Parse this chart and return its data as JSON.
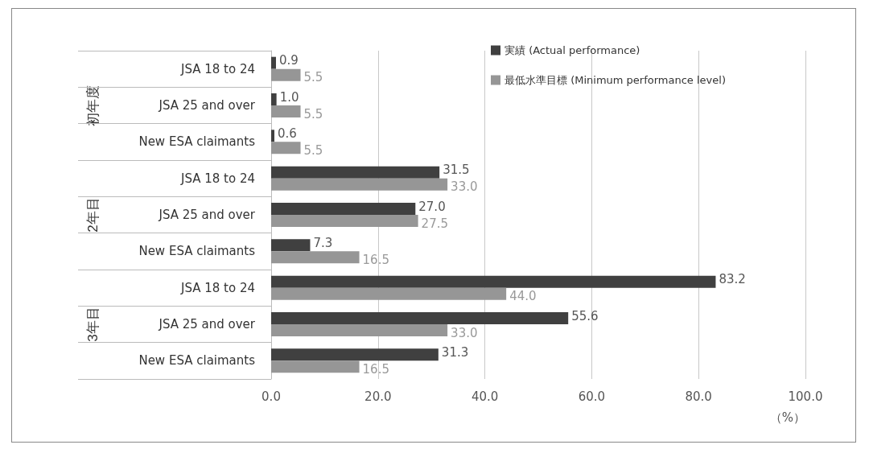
{
  "chart_data": {
    "type": "bar",
    "orientation": "horizontal",
    "xlabel": "（%）",
    "categories": [
      "JSA 18 to 24",
      "JSA 25 and over",
      "New ESA claimants",
      "JSA 18 to 24",
      "JSA 25 and over",
      "New ESA claimants",
      "JSA 18 to 24",
      "JSA 25 and over",
      "New ESA claimants"
    ],
    "annotations": [
      "初年度",
      "2年目",
      "3年目"
    ],
    "series": [
      {
        "name": "実績 (Actual performance)",
        "color": "#404040",
        "values": [
          0.9,
          1.0,
          0.6,
          31.5,
          27.0,
          7.3,
          83.2,
          55.6,
          31.3
        ],
        "value_labels": [
          "0.9",
          "1.0",
          "0.6",
          "31.5",
          "27.0",
          "7.3",
          "83.2",
          "55.6",
          "31.3"
        ]
      },
      {
        "name": "最低水準目標 (Minimum performance level)",
        "color": "#969696",
        "values": [
          5.5,
          5.5,
          5.5,
          33.0,
          27.5,
          16.5,
          44.0,
          33.0,
          16.5
        ],
        "value_labels": [
          "5.5",
          "5.5",
          "5.5",
          "33.0",
          "27.5",
          "16.5",
          "44.0",
          "33.0",
          "16.5"
        ]
      }
    ],
    "xlim": [
      0,
      100
    ],
    "xticks": [
      {
        "value": 0,
        "label": "0.0"
      },
      {
        "value": 20,
        "label": "20.0"
      },
      {
        "value": 40,
        "label": "40.0"
      },
      {
        "value": 60,
        "label": "60.0"
      },
      {
        "value": 80,
        "label": "80.0"
      },
      {
        "value": 100,
        "label": "100.0"
      }
    ],
    "grid": "x",
    "legend": "top right"
  }
}
